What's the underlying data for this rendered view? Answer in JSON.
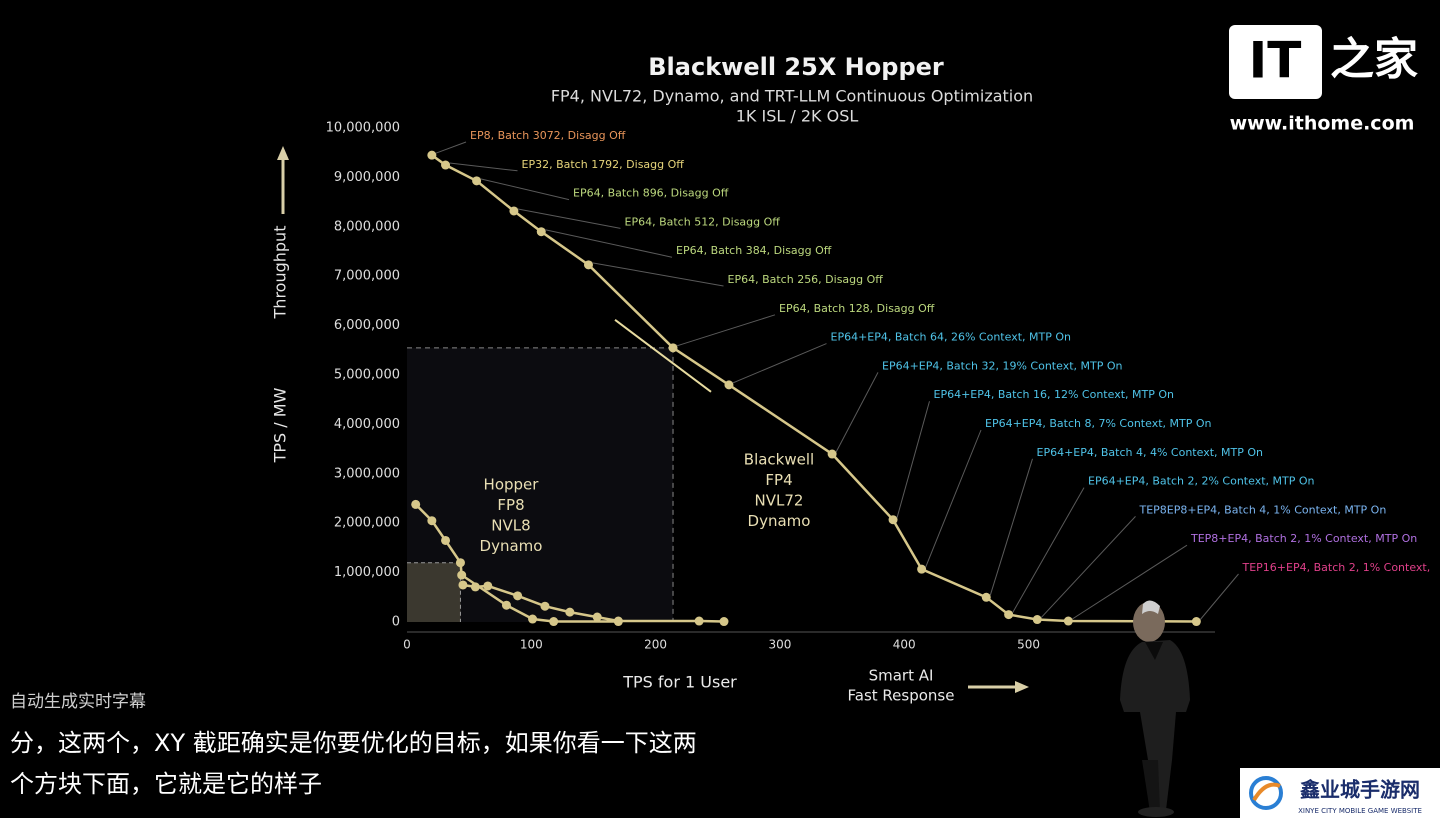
{
  "chart_data": {
    "type": "line",
    "title": "Blackwell 25X Hopper",
    "subtitle": [
      "FP4, NVL72, Dynamo, and TRT-LLM Continuous Optimization",
      "1K ISL / 2K OSL"
    ],
    "y_label": "TPS / MW",
    "y_arrow_label": "Throughput",
    "x_label": "TPS for 1 User",
    "x_arrow_label": [
      "Smart AI",
      "Fast Response"
    ],
    "xlim": [
      0,
      650
    ],
    "ylim": [
      0,
      10000000
    ],
    "xticks": [
      0,
      100,
      200,
      300,
      400,
      500
    ],
    "yticks": [
      0,
      {
        "value": 1000000,
        "label": "1,000,000"
      },
      {
        "value": 2000000,
        "label": "2,000,000"
      },
      {
        "value": 3000000,
        "label": "3,000,000"
      },
      {
        "value": 4000000,
        "label": "4,000,000"
      },
      {
        "value": 5000000,
        "label": "5,000,000"
      },
      {
        "value": 6000000,
        "label": "6,000,000"
      },
      {
        "value": 7000000,
        "label": "7,000,000"
      },
      {
        "value": 8000000,
        "label": "8,000,000"
      },
      {
        "value": 9000000,
        "label": "9,000,000"
      },
      {
        "value": 10000000,
        "label": "10,000,000"
      }
    ],
    "series": [
      {
        "name": [
          "Blackwell",
          "FP4",
          "NVL72",
          "Dynamo"
        ],
        "color": "#d6c78a",
        "x": [
          20,
          31,
          56,
          86,
          108,
          146,
          214,
          259,
          342,
          391,
          414,
          466,
          484,
          507,
          532,
          635
        ],
        "values": [
          9450000,
          9250000,
          8930000,
          8320000,
          7900000,
          7230000,
          5550000,
          4800000,
          3400000,
          2070000,
          1070000,
          500000,
          150000,
          50000,
          20000,
          10000
        ],
        "highlight_index": 6,
        "point_labels": [
          {
            "text": "EP8, Batch 3072, Disagg Off",
            "color": "#e8955a"
          },
          {
            "text": "EP32, Batch 1792, Disagg Off",
            "color": "#e6d47a"
          },
          {
            "text": "EP64, Batch 896, Disagg Off",
            "color": "#bcd87e"
          },
          {
            "text": "EP64, Batch 512, Disagg Off",
            "color": "#bcd87e"
          },
          {
            "text": "EP64, Batch 384, Disagg Off",
            "color": "#bcd87e"
          },
          {
            "text": "EP64, Batch 256, Disagg Off",
            "color": "#bcd87e"
          },
          {
            "text": "EP64, Batch 128, Disagg Off",
            "color": "#bcd87e"
          },
          {
            "text": "EP64+EP4, Batch 64, 26% Context, MTP On",
            "color": "#4fc3e8"
          },
          {
            "text": "EP64+EP4, Batch 32, 19% Context, MTP On",
            "color": "#4fc3e8"
          },
          {
            "text": "EP64+EP4, Batch 16, 12% Context, MTP On",
            "color": "#4fc3e8"
          },
          {
            "text": "EP64+EP4, Batch 8, 7% Context, MTP On",
            "color": "#4fc3e8"
          },
          {
            "text": "EP64+EP4, Batch 4, 4% Context, MTP On",
            "color": "#4fc3e8"
          },
          {
            "text": "EP64+EP4, Batch 2, 2% Context, MTP On",
            "color": "#4fc3e8"
          },
          {
            "text": "TEP8EP8+EP4, Batch 4, 1% Context, MTP On",
            "color": "#7ab4f0"
          },
          {
            "text": "TEP8+EP4, Batch 2, 1% Context, MTP On",
            "color": "#b070e0"
          },
          {
            "text": "TEP16+EP4, Batch 2, 1% Context,",
            "color": "#e0408a"
          }
        ]
      },
      {
        "name": [
          "Hopper",
          "FP8",
          "NVL8",
          "Dynamo"
        ],
        "color": "#d6c78a",
        "x": [
          7,
          20,
          31,
          43,
          44,
          80,
          101,
          118,
          170,
          null,
          45,
          55,
          65,
          89,
          111,
          131,
          153,
          170,
          235,
          255
        ],
        "values": [
          2380000,
          2050000,
          1650000,
          1200000,
          950000,
          340000,
          60000,
          10000,
          10000,
          null,
          750000,
          710000,
          730000,
          530000,
          320000,
          200000,
          100000,
          20000,
          20000,
          10000
        ],
        "highlight_index": 3
      }
    ]
  },
  "watermark": {
    "logo": [
      "IT",
      "之家"
    ],
    "url": "www.ithome.com"
  },
  "captions": {
    "header": "自动生成实时字幕",
    "lines": [
      "分，这两个，XY 截距确实是你要优化的目标，如果你看一下这两",
      "个方块下面，它就是它的样子"
    ]
  },
  "badge": {
    "name": "鑫业城手游网",
    "tagline": "XINYE CITY MOBILE GAME WEBSITE"
  }
}
